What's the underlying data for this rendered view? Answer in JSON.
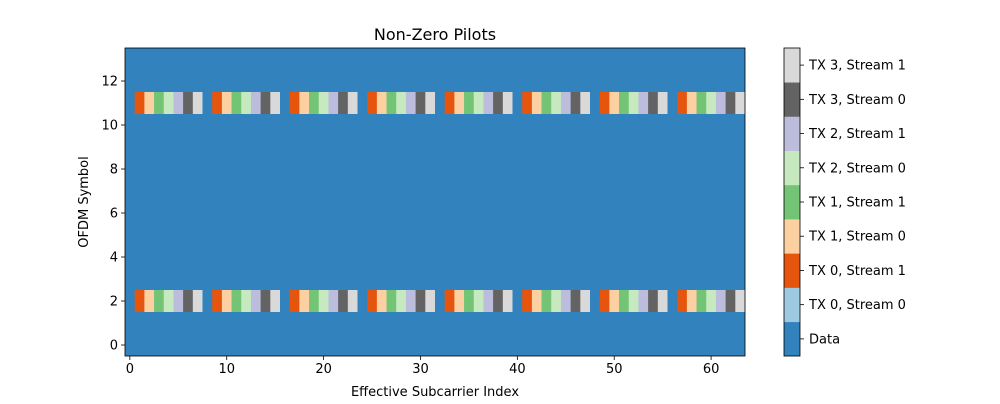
{
  "chart_data": {
    "type": "heatmap",
    "title": "Non-Zero Pilots",
    "xlabel": "Effective Subcarrier Index",
    "ylabel": "OFDM Symbol",
    "x_ticks": [
      0,
      10,
      20,
      30,
      40,
      50,
      60
    ],
    "y_ticks": [
      0,
      2,
      4,
      6,
      8,
      10,
      12
    ],
    "xlim": [
      -0.5,
      63.5
    ],
    "ylim": [
      -0.5,
      13.5
    ],
    "n_subcarriers": 64,
    "n_symbols": 14,
    "pilot_symbols": [
      2,
      11
    ],
    "pilot_pattern": [
      0,
      2,
      3,
      4,
      5,
      6,
      7,
      8
    ],
    "grid": false,
    "legend_position": "right (colorbar)",
    "categories": [
      {
        "value": 0,
        "label": "Data",
        "color": "#3182bd"
      },
      {
        "value": 1,
        "label": "TX 0, Stream 0",
        "color": "#9ecae1"
      },
      {
        "value": 2,
        "label": "TX 0, Stream 1",
        "color": "#e6550d"
      },
      {
        "value": 3,
        "label": "TX 1, Stream 0",
        "color": "#fdd0a2"
      },
      {
        "value": 4,
        "label": "TX 1, Stream 1",
        "color": "#74c476"
      },
      {
        "value": 5,
        "label": "TX 2, Stream 0",
        "color": "#c7e9c0"
      },
      {
        "value": 6,
        "label": "TX 2, Stream 1",
        "color": "#bcbddc"
      },
      {
        "value": 7,
        "label": "TX 3, Stream 0",
        "color": "#636363"
      },
      {
        "value": 8,
        "label": "TX 3, Stream 1",
        "color": "#d9d9d9"
      }
    ]
  }
}
